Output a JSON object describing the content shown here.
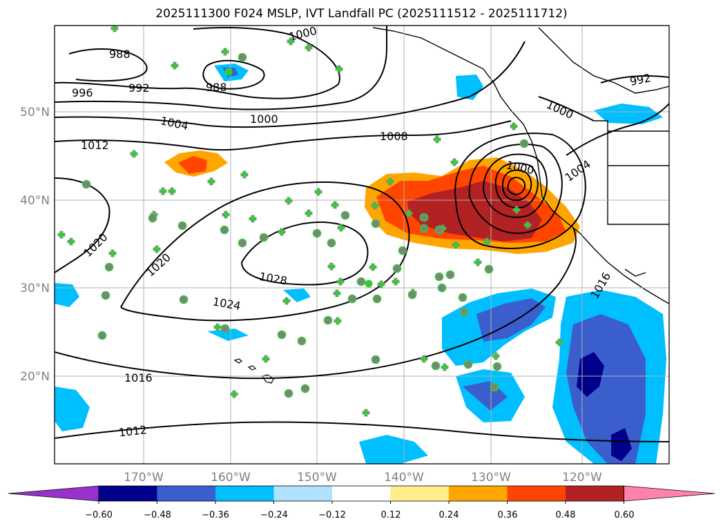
{
  "title": "2025111300 F024 MSLP, IVT Landfall PC (2025111512 - 2025111712)",
  "lon_ticks": [
    "170°W",
    "160°W",
    "150°W",
    "140°W",
    "130°W",
    "120°W"
  ],
  "lat_ticks": [
    "50°N",
    "40°N",
    "30°N",
    "20°N"
  ],
  "isobar_labels": [
    "988",
    "988",
    "992",
    "996",
    "1000",
    "1000",
    "1004",
    "1008",
    "1012",
    "1020",
    "1020",
    "1028",
    "1024",
    "1016",
    "1012",
    "1000",
    "1004",
    "1016",
    "1000",
    "992"
  ],
  "colorbar": {
    "ticks": [
      "−0.60",
      "−0.48",
      "−0.36",
      "−0.24",
      "−0.12",
      "0.12",
      "0.24",
      "0.36",
      "0.48",
      "0.60"
    ],
    "colors": [
      "#9932cc",
      "#00008b",
      "#3a5fcd",
      "#00bfff",
      "#b0e2ff",
      "#ffffff",
      "#ffec8b",
      "#ffa500",
      "#ff4500",
      "#b22222",
      "#ff82ab"
    ]
  },
  "markers": {
    "positive_color": "#32cd32",
    "negative_color": "#808080"
  }
}
